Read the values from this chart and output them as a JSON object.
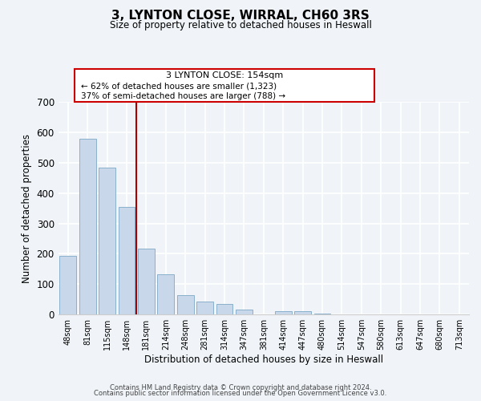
{
  "title": "3, LYNTON CLOSE, WIRRAL, CH60 3RS",
  "subtitle": "Size of property relative to detached houses in Heswall",
  "xlabel": "Distribution of detached houses by size in Heswall",
  "ylabel": "Number of detached properties",
  "bar_labels": [
    "48sqm",
    "81sqm",
    "115sqm",
    "148sqm",
    "181sqm",
    "214sqm",
    "248sqm",
    "281sqm",
    "314sqm",
    "347sqm",
    "381sqm",
    "414sqm",
    "447sqm",
    "480sqm",
    "514sqm",
    "547sqm",
    "580sqm",
    "613sqm",
    "647sqm",
    "680sqm",
    "713sqm"
  ],
  "bar_values": [
    193,
    578,
    484,
    355,
    216,
    133,
    63,
    44,
    34,
    16,
    0,
    10,
    11,
    4,
    0,
    0,
    0,
    0,
    0,
    0,
    0
  ],
  "bar_color": "#c8d8ea",
  "bar_edge_color": "#8ab0cc",
  "marker_index": 3,
  "marker_line_color": "#aa0000",
  "ylim": [
    0,
    700
  ],
  "yticks": [
    0,
    100,
    200,
    300,
    400,
    500,
    600,
    700
  ],
  "annotation_title": "3 LYNTON CLOSE: 154sqm",
  "annotation_line1": "← 62% of detached houses are smaller (1,323)",
  "annotation_line2": "37% of semi-detached houses are larger (788) →",
  "annotation_box_color": "#ffffff",
  "annotation_box_edge": "#cc0000",
  "footer_line1": "Contains HM Land Registry data © Crown copyright and database right 2024.",
  "footer_line2": "Contains public sector information licensed under the Open Government Licence v3.0.",
  "background_color": "#f0f4f8",
  "grid_color": "#ffffff",
  "spine_color": "#cccccc"
}
